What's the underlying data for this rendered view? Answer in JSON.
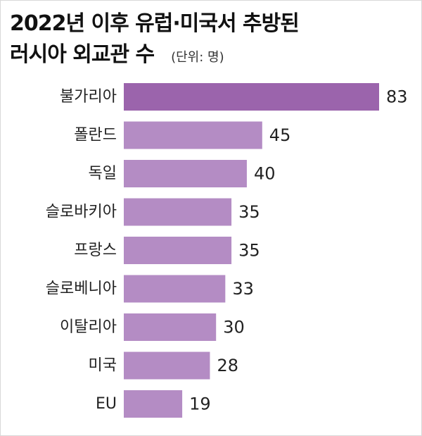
{
  "chart_data": {
    "type": "bar",
    "orientation": "horizontal",
    "title_line1": "2022년 이후 유럽·미국서 추방된",
    "title_line2": "러시아 외교관 수",
    "unit": "(단위: 명)",
    "categories": [
      "불가리아",
      "폴란드",
      "독일",
      "슬로바키아",
      "프랑스",
      "슬로베니아",
      "이탈리아",
      "미국",
      "EU"
    ],
    "values": [
      83,
      45,
      40,
      35,
      35,
      33,
      30,
      28,
      19
    ],
    "xlim": [
      0,
      83
    ],
    "grid": false,
    "legend": "none",
    "colors": {
      "highlight": "#9b64ac",
      "bar": "#b48cc4",
      "text": "#222222"
    }
  }
}
